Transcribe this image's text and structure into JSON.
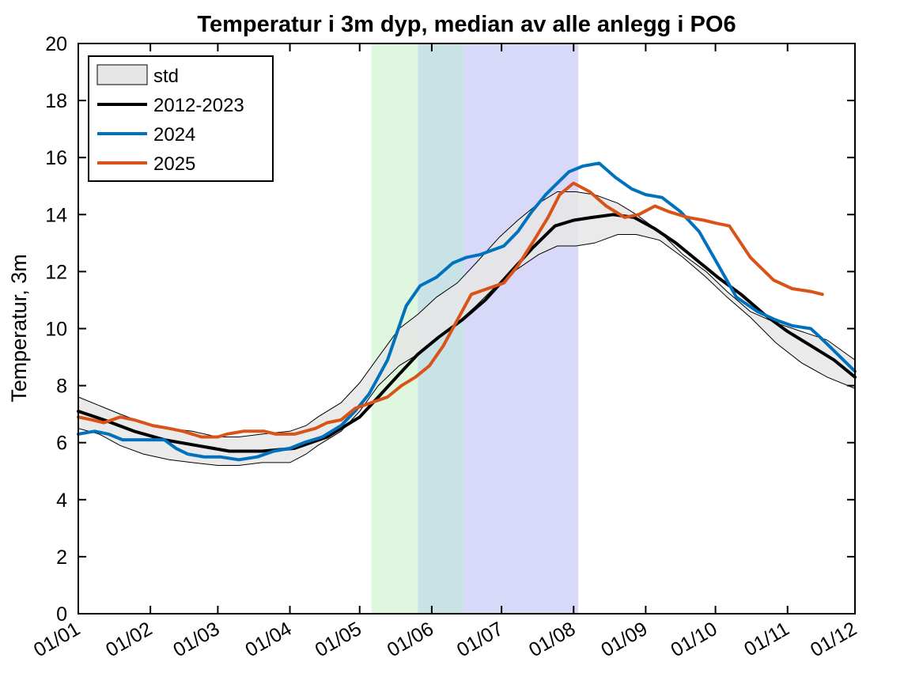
{
  "chart_data": {
    "type": "line",
    "title": "Temperatur i 3m dyp, median av alle anlegg i PO6",
    "xlabel": "",
    "ylabel": "Temperatur, 3m",
    "x_range": [
      1,
      335
    ],
    "ylim": [
      0,
      20
    ],
    "y_ticks": [
      0,
      2,
      4,
      6,
      8,
      10,
      12,
      14,
      16,
      18,
      20
    ],
    "x_ticks": [
      {
        "day": 1,
        "label": "01/01"
      },
      {
        "day": 32,
        "label": "01/02"
      },
      {
        "day": 61,
        "label": "01/03"
      },
      {
        "day": 92,
        "label": "01/04"
      },
      {
        "day": 122,
        "label": "01/05"
      },
      {
        "day": 153,
        "label": "01/06"
      },
      {
        "day": 183,
        "label": "01/07"
      },
      {
        "day": 214,
        "label": "01/08"
      },
      {
        "day": 245,
        "label": "01/09"
      },
      {
        "day": 275,
        "label": "01/10"
      },
      {
        "day": 306,
        "label": "01/11"
      },
      {
        "day": 335,
        "label": "01/12"
      }
    ],
    "grid": false,
    "legend_position": "top-left",
    "shaded_periods": [
      {
        "start": 127,
        "end": 147,
        "color": "#dff7df"
      },
      {
        "start": 147,
        "end": 167,
        "color": "#c9e2e6"
      },
      {
        "start": 167,
        "end": 216,
        "color": "#d8d8f8"
      }
    ],
    "std_band": {
      "name": "std",
      "fill": "#e6e6e6",
      "x": [
        1,
        10,
        19,
        29,
        40,
        50,
        61,
        70,
        80,
        92,
        99,
        104,
        114,
        122,
        130,
        139,
        147,
        155,
        164,
        172,
        182,
        190,
        199,
        207,
        215,
        223,
        233,
        241,
        251,
        261,
        271,
        280,
        290,
        301,
        312,
        323,
        335
      ],
      "upper": [
        7.6,
        7.3,
        7.0,
        6.7,
        6.5,
        6.4,
        6.2,
        6.2,
        6.3,
        6.4,
        6.6,
        6.9,
        7.4,
        8.1,
        9.0,
        10.0,
        10.5,
        11.1,
        11.6,
        12.3,
        13.2,
        13.8,
        14.4,
        14.8,
        14.8,
        14.7,
        14.4,
        14.0,
        13.4,
        12.6,
        12.0,
        11.3,
        10.6,
        10.2,
        9.9,
        9.6,
        8.9
      ],
      "lower": [
        6.5,
        6.3,
        5.9,
        5.6,
        5.4,
        5.3,
        5.2,
        5.2,
        5.3,
        5.3,
        5.6,
        5.9,
        6.4,
        7.1,
        8.0,
        8.7,
        9.1,
        9.6,
        10.2,
        10.8,
        11.6,
        12.1,
        12.6,
        12.9,
        12.9,
        13.0,
        13.3,
        13.3,
        13.1,
        12.5,
        11.8,
        11.1,
        10.4,
        9.5,
        8.8,
        8.3,
        7.9
      ]
    },
    "series": [
      {
        "name": "2012-2023",
        "color": "#000000",
        "x": [
          1,
          12,
          25,
          38,
          52,
          66,
          80,
          94,
          108,
          122,
          130,
          139,
          147,
          156,
          166,
          176,
          186,
          196,
          206,
          214,
          222,
          231,
          240,
          249,
          258,
          267,
          276,
          286,
          296,
          306,
          316,
          326,
          335
        ],
        "y": [
          7.1,
          6.8,
          6.4,
          6.1,
          5.9,
          5.7,
          5.7,
          5.8,
          6.2,
          6.9,
          7.6,
          8.4,
          9.1,
          9.7,
          10.3,
          11.0,
          11.9,
          12.8,
          13.6,
          13.8,
          13.9,
          14.0,
          13.9,
          13.5,
          13.0,
          12.4,
          11.8,
          11.2,
          10.5,
          9.9,
          9.4,
          8.9,
          8.3
        ]
      },
      {
        "name": "2024",
        "color": "#0072bd",
        "x": [
          1,
          8,
          14,
          20,
          29,
          38,
          43,
          48,
          55,
          62,
          70,
          78,
          85,
          92,
          98,
          106,
          114,
          120,
          126,
          134,
          142,
          148,
          155,
          162,
          168,
          174,
          184,
          190,
          196,
          202,
          207,
          212,
          218,
          225,
          232,
          239,
          245,
          252,
          260,
          268,
          275,
          284,
          293,
          301,
          308,
          316,
          320,
          325,
          335
        ],
        "y": [
          6.3,
          6.4,
          6.3,
          6.1,
          6.1,
          6.1,
          5.8,
          5.6,
          5.5,
          5.5,
          5.4,
          5.5,
          5.7,
          5.8,
          6.0,
          6.2,
          6.6,
          7.1,
          7.7,
          8.9,
          10.8,
          11.5,
          11.8,
          12.3,
          12.5,
          12.6,
          12.9,
          13.4,
          14.1,
          14.7,
          15.1,
          15.5,
          15.7,
          15.8,
          15.3,
          14.9,
          14.7,
          14.6,
          14.1,
          13.4,
          12.4,
          11.1,
          10.6,
          10.3,
          10.1,
          10.0,
          9.7,
          9.3,
          8.5
        ]
      },
      {
        "name": "2025",
        "color": "#d95319",
        "x": [
          1,
          7,
          12,
          19,
          25,
          33,
          40,
          46,
          54,
          61,
          65,
          72,
          81,
          86,
          94,
          103,
          108,
          114,
          120,
          127,
          134,
          140,
          146,
          152,
          158,
          164,
          170,
          177,
          184,
          190,
          197,
          203,
          208,
          214,
          221,
          228,
          236,
          242,
          249,
          255,
          263,
          270,
          275,
          281,
          290,
          300,
          308,
          316,
          321
        ],
        "y": [
          6.9,
          6.8,
          6.7,
          6.9,
          6.8,
          6.6,
          6.5,
          6.4,
          6.2,
          6.2,
          6.3,
          6.4,
          6.4,
          6.3,
          6.3,
          6.5,
          6.7,
          6.8,
          7.2,
          7.4,
          7.6,
          8.0,
          8.3,
          8.7,
          9.4,
          10.3,
          11.2,
          11.4,
          11.6,
          12.2,
          13.1,
          13.9,
          14.7,
          15.1,
          14.8,
          14.3,
          13.9,
          14.0,
          14.3,
          14.1,
          13.9,
          13.8,
          13.7,
          13.6,
          12.5,
          11.7,
          11.4,
          11.3,
          11.2
        ]
      }
    ]
  }
}
